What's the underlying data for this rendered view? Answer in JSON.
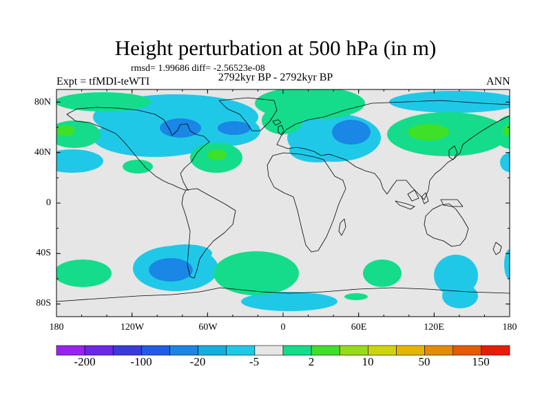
{
  "header": {
    "title": "Height perturbation at 500 hPa (in m)",
    "stats": "rmsd= 1.99686 diff= -2.56523e-08",
    "period": "2792kyr BP - 2792kyr BP",
    "experiment": "Expt = tfMDI-teWTI",
    "season": "ANN"
  },
  "map": {
    "projection": "cylindrical equidistant",
    "lon_range": [
      -180,
      180
    ],
    "lat_range": [
      -90,
      90
    ],
    "y_ticks": [
      "80N",
      "40N",
      "0",
      "40S",
      "80S"
    ],
    "x_ticks": [
      "180",
      "120W",
      "60W",
      "0",
      "60E",
      "120E",
      "180"
    ],
    "background_color": "#e6e6e6",
    "coastline_color": "#000000"
  },
  "colorbar": {
    "labels": [
      "-200",
      "-100",
      "-20",
      "-5",
      "2",
      "10",
      "50",
      "150"
    ],
    "colors": [
      "#9a22f0",
      "#6a27e8",
      "#3a3ad8",
      "#1e5ce6",
      "#1a86e6",
      "#14aee0",
      "#20c8e8",
      "#e6e6e6",
      "#14dc8a",
      "#3ee028",
      "#96dc18",
      "#cfd40a",
      "#e6b400",
      "#e68a00",
      "#e65a00",
      "#e61e00"
    ]
  }
}
